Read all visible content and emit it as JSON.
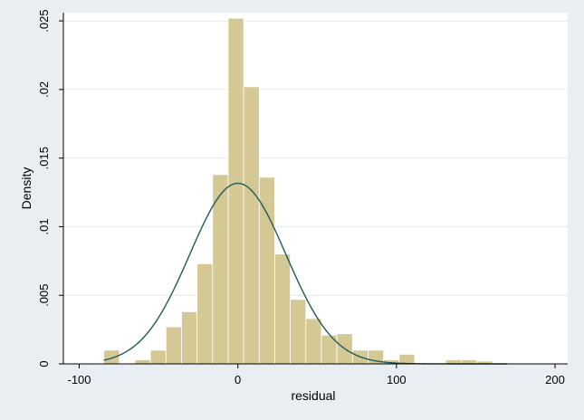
{
  "chart_data": {
    "type": "bar",
    "title": "",
    "xlabel": "residual",
    "ylabel": "Density",
    "xlim": [
      -110,
      208
    ],
    "ylim": [
      0,
      0.0256
    ],
    "x_ticks": [
      -100,
      0,
      100,
      200
    ],
    "x_tick_labels": [
      "-100",
      "0",
      "100",
      "200"
    ],
    "y_ticks": [
      0,
      0.005,
      0.01,
      0.015,
      0.02,
      0.025
    ],
    "y_tick_labels": [
      "0",
      ".005",
      ".01",
      ".015",
      ".02",
      ".025"
    ],
    "grid": "horizontal",
    "legend": "none",
    "bin_width": 9.8,
    "bins": [
      {
        "start": -84.5,
        "density": 0.001
      },
      {
        "start": -74.7,
        "density": 0.0
      },
      {
        "start": -64.9,
        "density": 0.0003
      },
      {
        "start": -55.1,
        "density": 0.001
      },
      {
        "start": -45.3,
        "density": 0.0027
      },
      {
        "start": -35.5,
        "density": 0.0038
      },
      {
        "start": -25.7,
        "density": 0.0073
      },
      {
        "start": -15.9,
        "density": 0.0138
      },
      {
        "start": -6.1,
        "density": 0.0252
      },
      {
        "start": 3.7,
        "density": 0.0202
      },
      {
        "start": 13.5,
        "density": 0.0136
      },
      {
        "start": 23.3,
        "density": 0.008
      },
      {
        "start": 33.1,
        "density": 0.0047
      },
      {
        "start": 42.9,
        "density": 0.0033
      },
      {
        "start": 52.7,
        "density": 0.0021
      },
      {
        "start": 62.5,
        "density": 0.0022
      },
      {
        "start": 72.3,
        "density": 0.001
      },
      {
        "start": 82.1,
        "density": 0.001
      },
      {
        "start": 91.9,
        "density": 0.0003
      },
      {
        "start": 101.7,
        "density": 0.0007
      },
      {
        "start": 111.5,
        "density": 0.0
      },
      {
        "start": 121.3,
        "density": 0.0
      },
      {
        "start": 131.1,
        "density": 0.0003
      },
      {
        "start": 140.9,
        "density": 0.0003
      },
      {
        "start": 150.7,
        "density": 0.0002
      },
      {
        "start": 160.5,
        "density": 0.0
      }
    ],
    "normal_curve": {
      "mean": 0,
      "sd": 30.3,
      "x_range": [
        -84.5,
        170
      ],
      "color": "#1f5b58"
    },
    "colors": {
      "bar_fill": "#d4c894",
      "bar_stroke": "#ffffff",
      "plot_background": "#ffffff",
      "outer_background": "#e9eef2",
      "grid": "#e6eaee"
    }
  }
}
